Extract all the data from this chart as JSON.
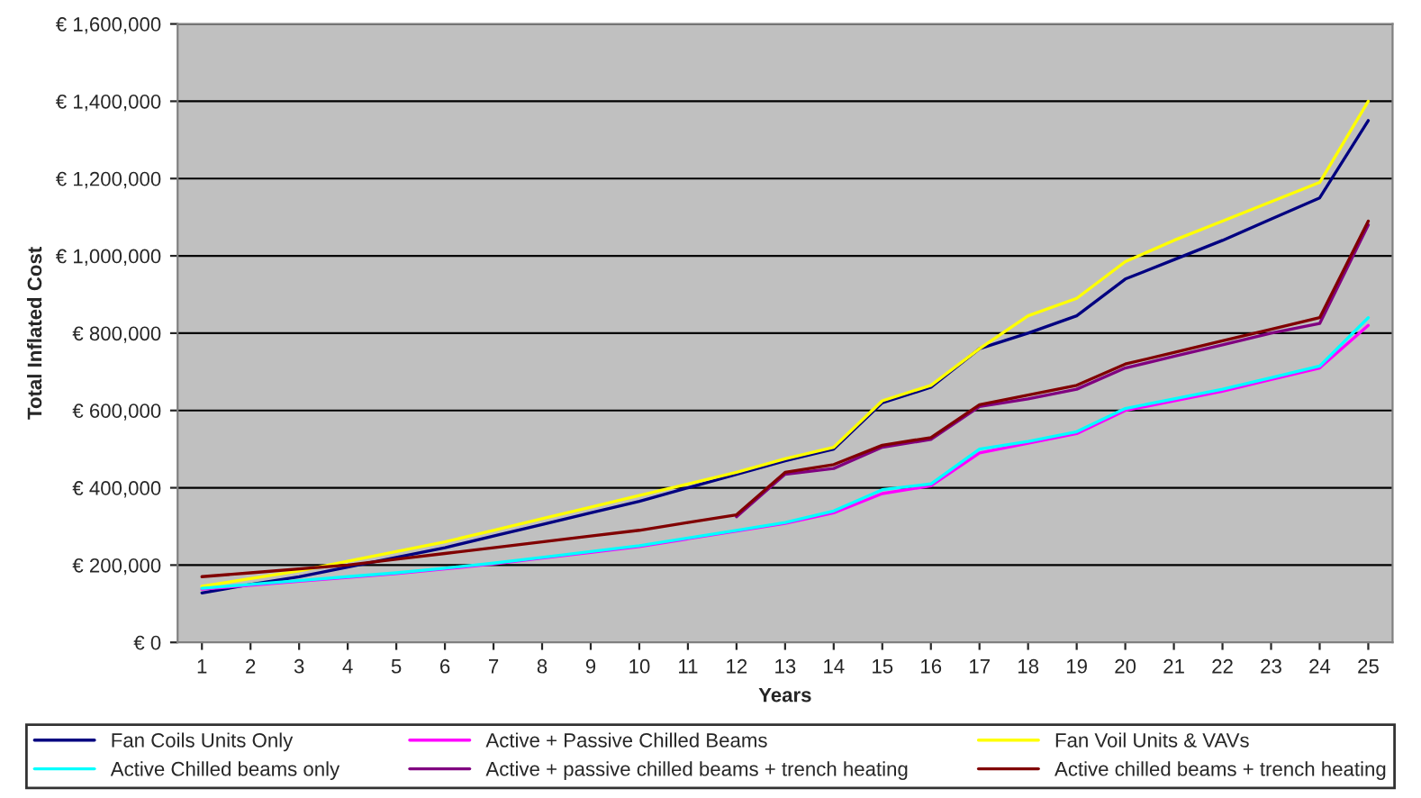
{
  "chart_data": {
    "type": "line",
    "xlabel": "Years",
    "ylabel": "Total Inflated Cost",
    "categories": [
      "1",
      "2",
      "3",
      "4",
      "5",
      "6",
      "7",
      "8",
      "9",
      "10",
      "11",
      "12",
      "13",
      "14",
      "15",
      "16",
      "17",
      "18",
      "19",
      "20",
      "21",
      "22",
      "23",
      "24",
      "25"
    ],
    "series": [
      {
        "name": "Fan Coils Units Only",
        "color": "#000080",
        "values": [
          128000,
          150000,
          170000,
          195000,
          220000,
          245000,
          275000,
          305000,
          335000,
          365000,
          400000,
          435000,
          470000,
          500000,
          620000,
          660000,
          760000,
          800000,
          845000,
          940000,
          990000,
          1040000,
          1095000,
          1150000,
          1350000
        ]
      },
      {
        "name": "Active + Passive Chilled Beams",
        "color": "#ff00ff",
        "values": [
          138000,
          148000,
          158000,
          168000,
          178000,
          190000,
          203000,
          218000,
          233000,
          248000,
          268000,
          288000,
          308000,
          335000,
          385000,
          405000,
          490000,
          515000,
          540000,
          600000,
          625000,
          650000,
          680000,
          710000,
          820000
        ]
      },
      {
        "name": "Fan Voil Units & VAVs",
        "color": "#ffff00",
        "values": [
          145000,
          165000,
          185000,
          210000,
          235000,
          260000,
          290000,
          320000,
          350000,
          380000,
          410000,
          440000,
          475000,
          505000,
          625000,
          665000,
          760000,
          845000,
          890000,
          985000,
          1040000,
          1090000,
          1140000,
          1190000,
          1400000
        ]
      },
      {
        "name": "Active Chilled beams only",
        "color": "#00ffff",
        "values": [
          140000,
          150000,
          160000,
          170000,
          180000,
          192000,
          205000,
          220000,
          235000,
          250000,
          270000,
          290000,
          310000,
          340000,
          395000,
          410000,
          500000,
          520000,
          545000,
          605000,
          630000,
          655000,
          685000,
          715000,
          840000
        ]
      },
      {
        "name": "Active + passive chilled beams + trench heating",
        "color": "#800080",
        "values": [
          null,
          null,
          null,
          null,
          null,
          null,
          null,
          null,
          null,
          null,
          null,
          325000,
          435000,
          450000,
          505000,
          525000,
          610000,
          630000,
          655000,
          710000,
          740000,
          770000,
          800000,
          825000,
          1080000
        ]
      },
      {
        "name": "Active chilled beams + trench heating",
        "color": "#800000",
        "values": [
          170000,
          180000,
          190000,
          200000,
          215000,
          230000,
          245000,
          260000,
          275000,
          290000,
          310000,
          330000,
          440000,
          460000,
          510000,
          530000,
          615000,
          640000,
          665000,
          720000,
          750000,
          780000,
          810000,
          840000,
          1090000
        ]
      }
    ],
    "ylim": [
      0,
      1600000
    ],
    "yticks": [
      {
        "value": 0,
        "label": "€ 0"
      },
      {
        "value": 200000,
        "label": "€ 200,000"
      },
      {
        "value": 400000,
        "label": "€ 400,000"
      },
      {
        "value": 600000,
        "label": "€ 600,000"
      },
      {
        "value": 800000,
        "label": "€ 800,000"
      },
      {
        "value": 1000000,
        "label": "€ 1,000,000"
      },
      {
        "value": 1200000,
        "label": "€ 1,200,000"
      },
      {
        "value": 1400000,
        "label": "€ 1,400,000"
      },
      {
        "value": 1600000,
        "label": "€ 1,600,000"
      }
    ],
    "grid": "y",
    "legend": "bottom",
    "marker": "none",
    "line_style": "solid"
  }
}
